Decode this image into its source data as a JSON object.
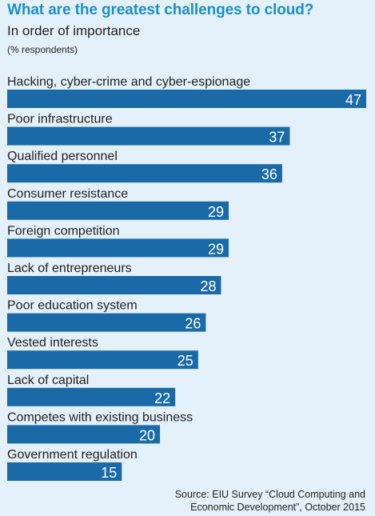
{
  "colors": {
    "bar": "#1a6aa8",
    "background": "#e4f1fa",
    "title": "#1f8fc9"
  },
  "chart_data": {
    "type": "bar",
    "orientation": "horizontal",
    "title": "What are the greatest challenges to cloud?",
    "subtitle": "In order of importance",
    "unit_label": "(% respondents)",
    "categories": [
      "Hacking, cyber-crime and cyber-espionage",
      "Poor infrastructure",
      "Qualified personnel",
      "Consumer resistance",
      "Foreign competition",
      "Lack of entrepreneurs",
      "Poor education system",
      "Vested interests",
      "Lack of capital",
      "Competes with existing business",
      "Government regulation"
    ],
    "values": [
      47,
      37,
      36,
      29,
      29,
      28,
      26,
      25,
      22,
      20,
      15
    ],
    "xlim": [
      0,
      47
    ],
    "grid": false,
    "legend": "none",
    "source_line1": "Source: EIU Survey “Cloud Computing and",
    "source_line2": "Economic Development”, October 2015"
  }
}
